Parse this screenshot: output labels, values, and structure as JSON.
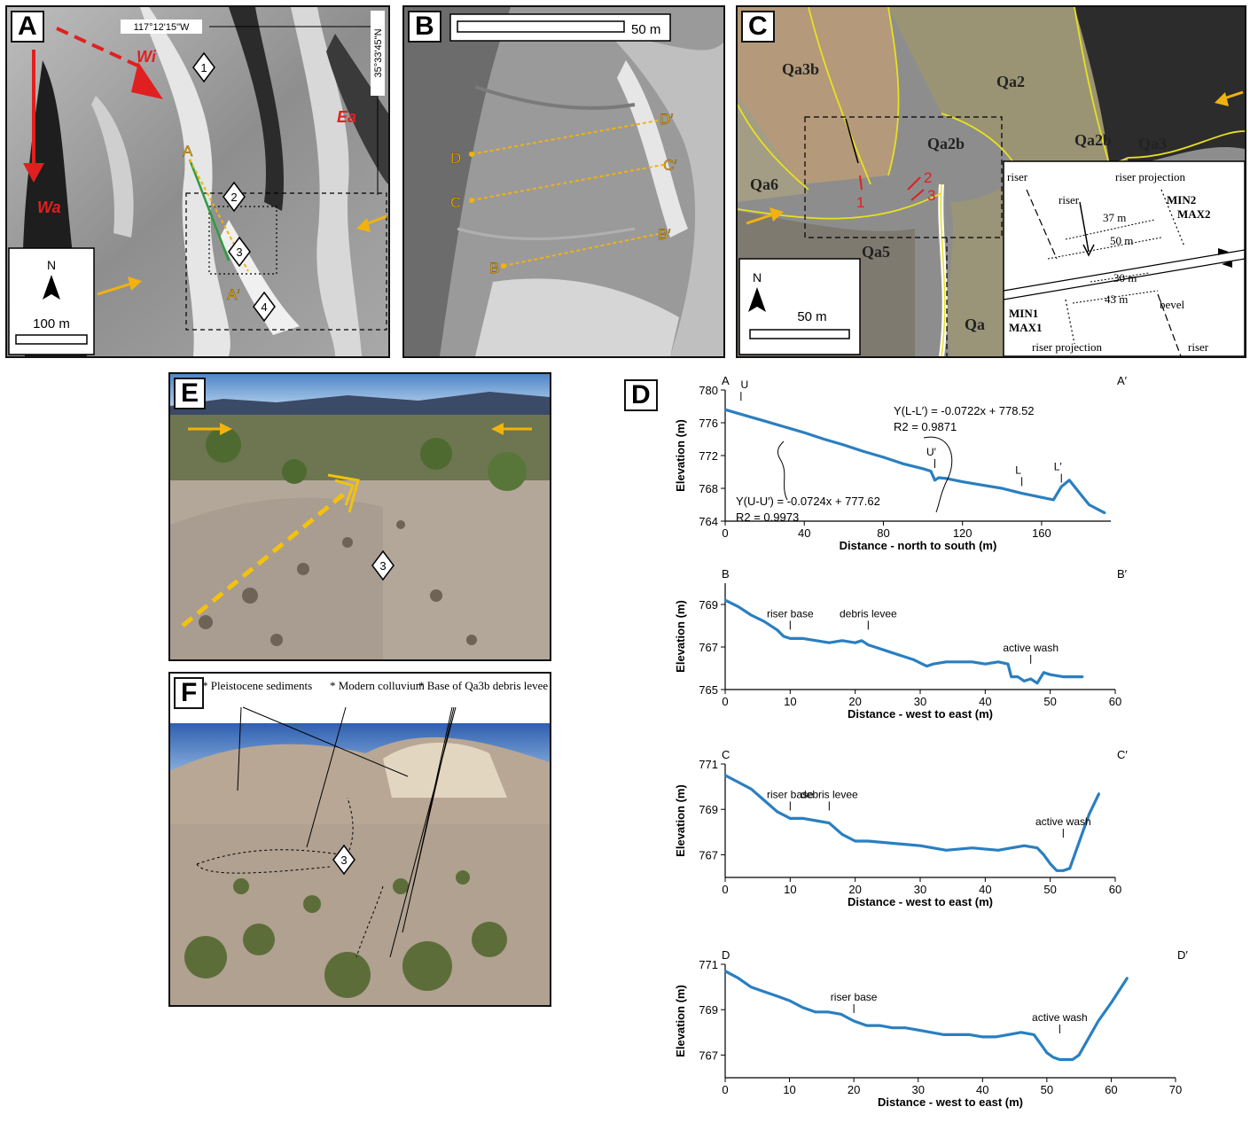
{
  "panels": {
    "A": {
      "label": "A",
      "longitude": "117°12'15\"W",
      "latitude": "35°33'45\"N",
      "fault_labels": [
        "Wi",
        "Ea",
        "Wa"
      ],
      "profile_start": "A",
      "profile_end": "A′",
      "sites": [
        "1",
        "2",
        "3",
        "4"
      ],
      "north": "N",
      "scale": "100 m"
    },
    "B": {
      "label": "B",
      "scale": "50 m",
      "profiles": [
        {
          "start": "D",
          "end": "D′"
        },
        {
          "start": "C",
          "end": "C′"
        },
        {
          "start": "B",
          "end": "B′"
        }
      ]
    },
    "C": {
      "label": "C",
      "units": [
        "Qa3b",
        "Qa2",
        "Qa2b",
        "Qa2b",
        "Qa3",
        "Qa6",
        "Qa5",
        "Qa"
      ],
      "points": [
        "1",
        "2",
        "3"
      ],
      "north": "N",
      "scale": "50 m",
      "inset": {
        "riser_top_left": "riser",
        "riser_projection_top": "riser projection",
        "riser_arrow": "riser",
        "min2": "MIN2",
        "max2": "MAX2",
        "d37": "37 m",
        "d50": "50 m",
        "d30": "30 m",
        "d43": "43 m",
        "bevel": "bevel",
        "min1": "MIN1",
        "max1": "MAX1",
        "riser_projection_bottom": "riser projection",
        "riser_bottom": "riser"
      }
    },
    "E": {
      "label": "E",
      "site": "3"
    },
    "F": {
      "label": "F",
      "site": "3",
      "notes": [
        "* Pleistocene sediments",
        "* Modern colluvium",
        "* Base of Qa3b debris levee"
      ]
    },
    "D": {
      "label": "D"
    }
  },
  "chart_data": [
    {
      "type": "line",
      "title": "",
      "start_label": "A",
      "end_label": "A′",
      "xlabel": "Distance - north to south (m)",
      "ylabel": "Elevation (m)",
      "xlim": [
        0,
        195
      ],
      "ylim": [
        764,
        780
      ],
      "xticks": [
        "0",
        "40",
        "80",
        "120",
        "160"
      ],
      "yticks": [
        "764",
        "768",
        "772",
        "776",
        "780"
      ],
      "x": [
        0,
        10,
        20,
        30,
        40,
        50,
        60,
        70,
        80,
        90,
        100,
        104,
        106,
        108,
        112,
        120,
        130,
        140,
        150,
        160,
        166,
        170,
        174,
        178,
        184,
        192
      ],
      "y": [
        777.6,
        776.9,
        776.2,
        775.5,
        774.8,
        774.0,
        773.3,
        772.5,
        771.8,
        771.0,
        770.4,
        770.1,
        769.0,
        769.3,
        769.2,
        768.8,
        768.4,
        768.0,
        767.4,
        766.9,
        766.6,
        768.2,
        769.0,
        767.8,
        766.0,
        765.0
      ],
      "annotations": [
        "U",
        "U′",
        "L",
        "L′"
      ],
      "equation_upper": "Y(L-L′) = -0.0722x + 778.52",
      "r2_upper": "R2 = 0.9871",
      "equation_lower": "Y(U-U′) = -0.0724x + 777.62",
      "r2_lower": "R2 = 0.9973"
    },
    {
      "type": "line",
      "title": "",
      "start_label": "B",
      "end_label": "B′",
      "xlabel": "Distance - west to east (m)",
      "ylabel": "Elevation (m)",
      "xlim": [
        0,
        60
      ],
      "ylim": [
        765,
        770
      ],
      "xticks": [
        "0",
        "10",
        "20",
        "30",
        "40",
        "50",
        "60"
      ],
      "yticks": [
        "765",
        "767",
        "769"
      ],
      "x": [
        0,
        2,
        4,
        6,
        8,
        9,
        10,
        12,
        14,
        16,
        18,
        20,
        21,
        22,
        23,
        25,
        27,
        29,
        31,
        32,
        34,
        36,
        38,
        40,
        42,
        43.5,
        44,
        45,
        46,
        47,
        48,
        49,
        50,
        52,
        55
      ],
      "y": [
        769.2,
        768.9,
        768.5,
        768.2,
        767.8,
        767.5,
        767.4,
        767.4,
        767.3,
        767.2,
        767.3,
        767.2,
        767.3,
        767.1,
        767.0,
        766.8,
        766.6,
        766.4,
        766.1,
        766.2,
        766.3,
        766.3,
        766.3,
        766.2,
        766.3,
        766.2,
        765.6,
        765.6,
        765.4,
        765.5,
        765.3,
        765.8,
        765.7,
        765.6,
        765.6
      ],
      "annotations": [
        "riser base",
        "debris levee",
        "active wash"
      ]
    },
    {
      "type": "line",
      "title": "",
      "start_label": "C",
      "end_label": "C′",
      "xlabel": "Distance - west to east (m)",
      "ylabel": "Elevation (m)",
      "xlim": [
        0,
        60
      ],
      "ylim": [
        766,
        771
      ],
      "xticks": [
        "0",
        "10",
        "20",
        "30",
        "40",
        "50",
        "60"
      ],
      "yticks": [
        "767",
        "769",
        "771"
      ],
      "x": [
        0,
        2,
        4,
        6,
        8,
        10,
        12,
        14,
        16,
        18,
        20,
        22,
        26,
        30,
        34,
        38,
        42,
        46,
        48,
        49,
        50,
        51,
        52,
        53,
        54,
        55,
        56,
        57.5
      ],
      "y": [
        770.5,
        770.2,
        769.9,
        769.4,
        768.9,
        768.6,
        768.6,
        768.5,
        768.4,
        767.9,
        767.6,
        767.6,
        767.5,
        767.4,
        767.2,
        767.3,
        767.2,
        767.4,
        767.3,
        767.0,
        766.6,
        766.3,
        766.3,
        766.4,
        767.2,
        768.0,
        768.8,
        769.7
      ],
      "annotations": [
        "riser base",
        "debris levee",
        "active wash"
      ]
    },
    {
      "type": "line",
      "title": "",
      "start_label": "D",
      "end_label": "D′",
      "xlabel": "Distance - west to east (m)",
      "ylabel": "Elevation (m)",
      "xlim": [
        0,
        70
      ],
      "ylim": [
        766,
        771
      ],
      "xticks": [
        "0",
        "10",
        "20",
        "30",
        "40",
        "50",
        "60",
        "70"
      ],
      "yticks": [
        "767",
        "769",
        "771"
      ],
      "x": [
        0,
        2,
        4,
        6,
        8,
        10,
        12,
        14,
        16,
        18,
        20,
        22,
        24,
        26,
        28,
        30,
        32,
        34,
        36,
        38,
        40,
        42,
        44,
        46,
        48,
        49,
        50,
        51,
        52,
        53,
        54,
        55,
        56,
        58,
        60,
        62.5
      ],
      "y": [
        770.7,
        770.4,
        770.0,
        769.8,
        769.6,
        769.4,
        769.1,
        768.9,
        768.9,
        768.8,
        768.5,
        768.3,
        768.3,
        768.2,
        768.2,
        768.1,
        768.0,
        767.9,
        767.9,
        767.9,
        767.8,
        767.8,
        767.9,
        768.0,
        767.9,
        767.5,
        767.1,
        766.9,
        766.8,
        766.8,
        766.8,
        767.0,
        767.5,
        768.5,
        769.3,
        770.4
      ],
      "annotations": [
        "riser base",
        "active wash"
      ]
    }
  ]
}
